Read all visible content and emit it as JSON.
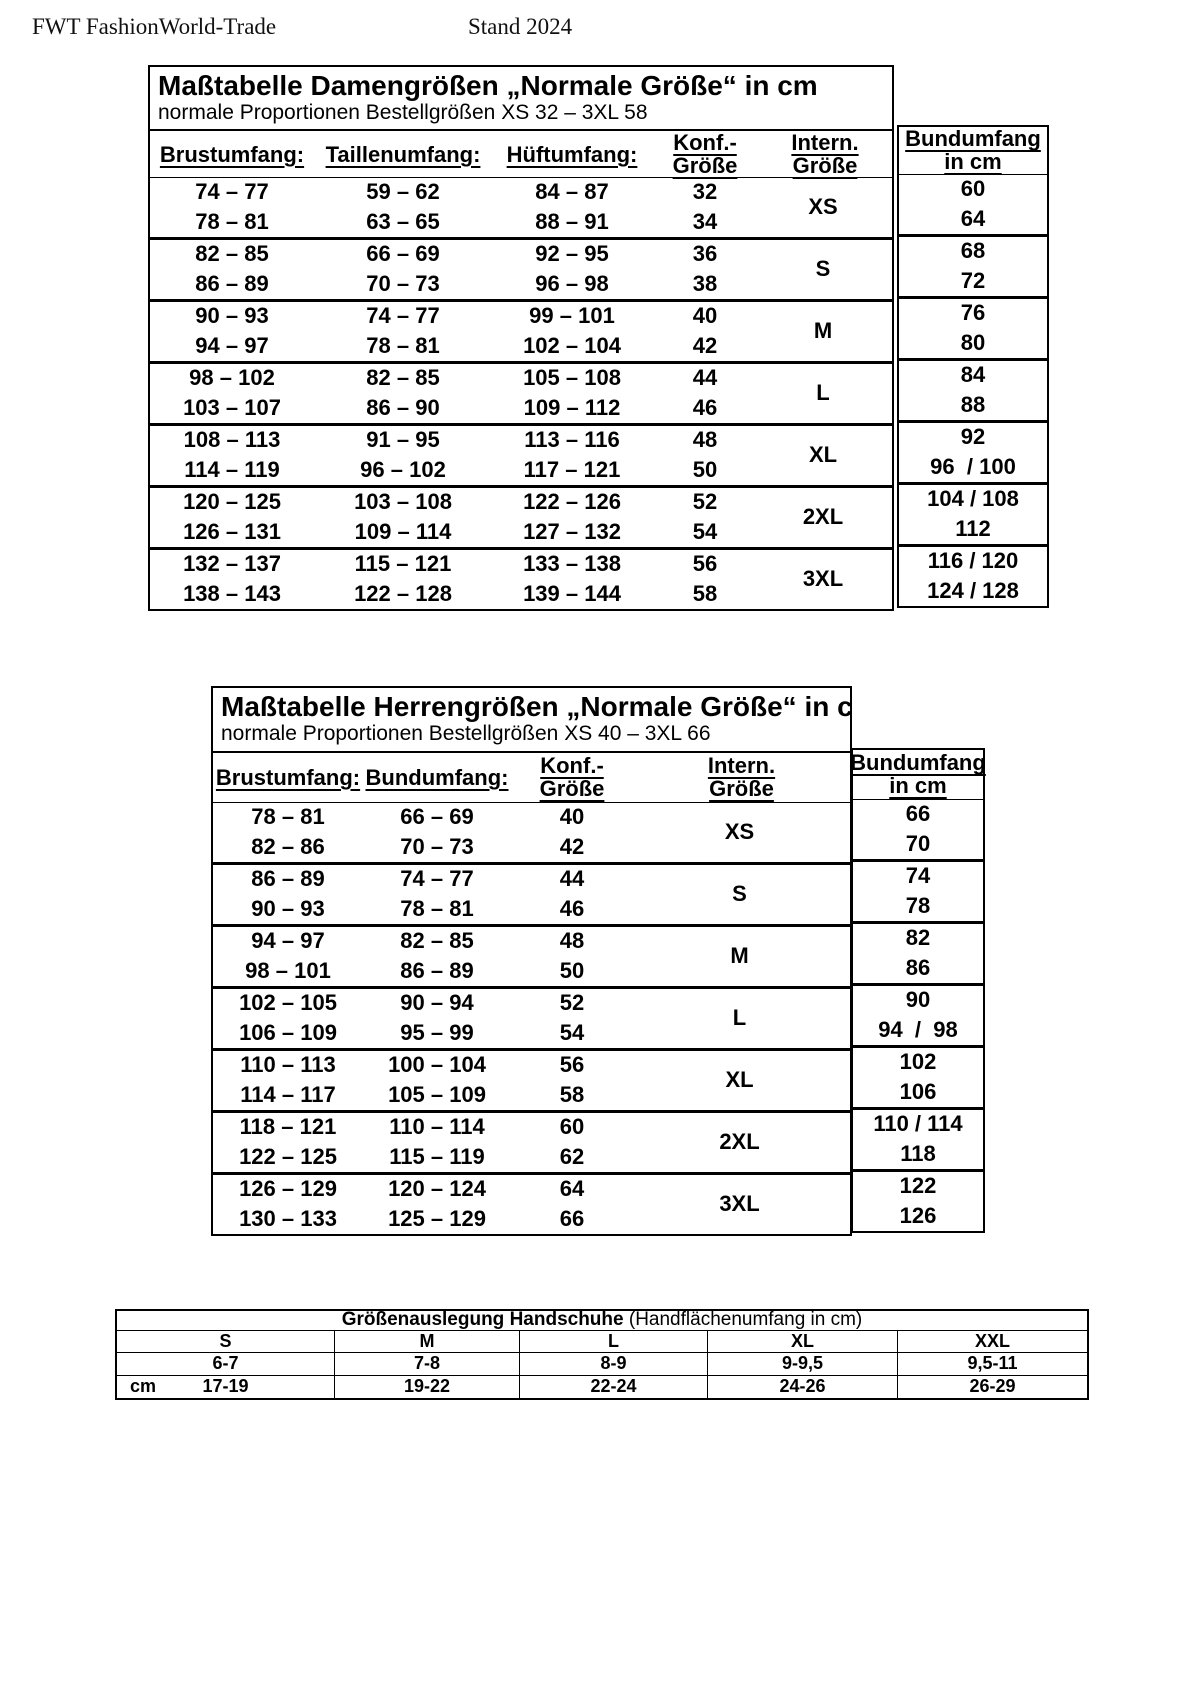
{
  "header": {
    "brand": "FWT FashionWorld-Trade",
    "stand": "Stand 2024"
  },
  "women": {
    "title": "Maßtabelle Damengrößen „Normale Größe“ in cm",
    "subtitle": "normale Proportionen Bestellgrößen XS 32 – 3XL 58",
    "headers": {
      "chest": "Brustumfang:",
      "waist": "Taillenumfang:",
      "hip": "Hüftumfang:",
      "konf1": "Konf.-",
      "konf2": "Größe",
      "intl": "Intern. Größe",
      "bund1": "Bundumfang",
      "bund2": "in cm"
    },
    "groups": [
      {
        "size": "XS",
        "rows": [
          [
            "74 – 77",
            "59 – 62",
            "84 – 87",
            "32"
          ],
          [
            "78 – 81",
            "63 – 65",
            "88 – 91",
            "34"
          ]
        ],
        "bund": [
          "60",
          "64"
        ]
      },
      {
        "size": "S",
        "rows": [
          [
            "82 – 85",
            "66 – 69",
            "92 – 95",
            "36"
          ],
          [
            "86 – 89",
            "70 – 73",
            "96 – 98",
            "38"
          ]
        ],
        "bund": [
          "68",
          "72"
        ]
      },
      {
        "size": "M",
        "rows": [
          [
            "90 – 93",
            "74 – 77",
            "99 – 101",
            "40"
          ],
          [
            "94 – 97",
            "78 – 81",
            "102 – 104",
            "42"
          ]
        ],
        "bund": [
          "76",
          "80"
        ]
      },
      {
        "size": "L",
        "rows": [
          [
            "98 – 102",
            "82 – 85",
            "105 – 108",
            "44"
          ],
          [
            "103 – 107",
            "86 – 90",
            "109 – 112",
            "46"
          ]
        ],
        "bund": [
          "84",
          "88"
        ]
      },
      {
        "size": "XL",
        "rows": [
          [
            "108 – 113",
            "91 – 95",
            "113 – 116",
            "48"
          ],
          [
            "114 – 119",
            "96 – 102",
            "117 – 121",
            "50"
          ]
        ],
        "bund": [
          "92",
          "96  / 100"
        ]
      },
      {
        "size": "2XL",
        "rows": [
          [
            "120 – 125",
            "103 – 108",
            "122 – 126",
            "52"
          ],
          [
            "126 – 131",
            "109 – 114",
            "127 – 132",
            "54"
          ]
        ],
        "bund": [
          "104 / 108",
          "112"
        ]
      },
      {
        "size": "3XL",
        "rows": [
          [
            "132 – 137",
            "115 – 121",
            "133 – 138",
            "56"
          ],
          [
            "138 – 143",
            "122 – 128",
            "139 – 144",
            "58"
          ]
        ],
        "bund": [
          "116 / 120",
          "124 / 128"
        ]
      }
    ]
  },
  "men": {
    "title": "Maßtabelle Herrengrößen „Normale Größe“ in cm",
    "subtitle": "normale Proportionen Bestellgrößen XS 40 – 3XL 66",
    "headers": {
      "chest": "Brustumfang:",
      "waist": "Bundumfang:",
      "konf1": "Konf.-",
      "konf2": "Größe",
      "intl1": "Intern.",
      "intl2": "Größe",
      "bund1": "Bundumfang",
      "bund2": "in cm"
    },
    "groups": [
      {
        "size": "XS",
        "rows": [
          [
            "78 – 81",
            "66 – 69",
            "40"
          ],
          [
            "82 – 86",
            "70 – 73",
            "42"
          ]
        ],
        "bund": [
          "66",
          "70"
        ]
      },
      {
        "size": "S",
        "rows": [
          [
            "86 – 89",
            "74 – 77",
            "44"
          ],
          [
            "90 – 93",
            "78 – 81",
            "46"
          ]
        ],
        "bund": [
          "74",
          "78"
        ]
      },
      {
        "size": "M",
        "rows": [
          [
            "94 – 97",
            "82 – 85",
            "48"
          ],
          [
            "98 – 101",
            "86 – 89",
            "50"
          ]
        ],
        "bund": [
          "82",
          "86"
        ]
      },
      {
        "size": "L",
        "rows": [
          [
            "102 – 105",
            "90 – 94",
            "52"
          ],
          [
            "106 – 109",
            "95 – 99",
            "54"
          ]
        ],
        "bund": [
          "90",
          "94  /  98"
        ]
      },
      {
        "size": "XL",
        "rows": [
          [
            "110 – 113",
            "100 – 104",
            "56"
          ],
          [
            "114 – 117",
            "105 – 109",
            "58"
          ]
        ],
        "bund": [
          "102",
          "106"
        ]
      },
      {
        "size": "2XL",
        "rows": [
          [
            "118 – 121",
            "110 – 114",
            "60"
          ],
          [
            "122 – 125",
            "115 – 119",
            "62"
          ]
        ],
        "bund": [
          "110 / 114",
          "118"
        ]
      },
      {
        "size": "3XL",
        "rows": [
          [
            "126 – 129",
            "120 – 124",
            "64"
          ],
          [
            "130 – 133",
            "125 – 129",
            "66"
          ]
        ],
        "bund": [
          "122",
          "126"
        ]
      }
    ]
  },
  "gloves": {
    "title_bold": "Größenauslegung Handschuhe",
    "title_normal": " (Handflächenumfang in cm)",
    "sizes": [
      "S",
      "M",
      "L",
      "XL",
      "XXL"
    ],
    "row1": [
      "6-7",
      "7-8",
      "8-9",
      "9-9,5",
      "9,5-11"
    ],
    "unit": "cm",
    "row2": [
      "17-19",
      "19-22",
      "22-24",
      "24-26",
      "26-29"
    ]
  }
}
